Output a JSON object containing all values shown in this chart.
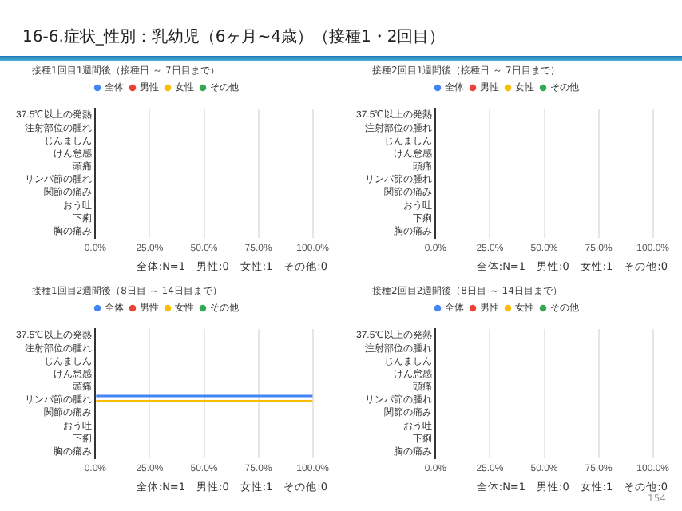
{
  "chart_data": [
    {
      "type": "bar",
      "orientation": "horizontal",
      "title": "接種1回目1週間後（接種日 ～ 7日目まで）",
      "annotations": [
        "16-6.症状_性別：乳幼児（6ヶ月~4歳）（接種1・2回目）",
        "全体:N=1　男性:0　女性:1　その他:0"
      ],
      "categories": [
        "37.5℃以上の発熱",
        "注射部位の腫れ",
        "じんましん",
        "けん怠感",
        "頭痛",
        "リンパ節の腫れ",
        "関節の痛み",
        "おう吐",
        "下痢",
        "胸の痛み"
      ],
      "series": [
        {
          "name": "全体",
          "color": "#4285f4",
          "values": [
            0,
            0,
            0,
            0,
            0,
            0,
            0,
            0,
            0,
            0
          ]
        },
        {
          "name": "男性",
          "color": "#ea4335",
          "values": [
            0,
            0,
            0,
            0,
            0,
            0,
            0,
            0,
            0,
            0
          ]
        },
        {
          "name": "女性",
          "color": "#fbbc04",
          "values": [
            0,
            0,
            0,
            0,
            0,
            0,
            0,
            0,
            0,
            0
          ]
        },
        {
          "name": "その他",
          "color": "#34a853",
          "values": [
            0,
            0,
            0,
            0,
            0,
            0,
            0,
            0,
            0,
            0
          ]
        }
      ],
      "xlim": [
        0,
        100
      ],
      "xticks": [
        {
          "value": 0,
          "label": "0.0%"
        },
        {
          "value": 25,
          "label": "25.0%"
        },
        {
          "value": 50,
          "label": "50.0%"
        },
        {
          "value": 75,
          "label": "75.0%"
        },
        {
          "value": 100,
          "label": "100.0%"
        }
      ],
      "grid": "x",
      "legend": "top"
    },
    {
      "type": "bar",
      "orientation": "horizontal",
      "title": "接種2回目1週間後（接種日 ～ 7日目まで）",
      "annotations": [
        "全体:N=1　男性:0　女性:1　その他:0"
      ],
      "categories": [
        "37.5℃以上の発熱",
        "注射部位の腫れ",
        "じんましん",
        "けん怠感",
        "頭痛",
        "リンパ節の腫れ",
        "関節の痛み",
        "おう吐",
        "下痢",
        "胸の痛み"
      ],
      "series": [
        {
          "name": "全体",
          "color": "#4285f4",
          "values": [
            0,
            0,
            0,
            0,
            0,
            0,
            0,
            0,
            0,
            0
          ]
        },
        {
          "name": "男性",
          "color": "#ea4335",
          "values": [
            0,
            0,
            0,
            0,
            0,
            0,
            0,
            0,
            0,
            0
          ]
        },
        {
          "name": "女性",
          "color": "#fbbc04",
          "values": [
            0,
            0,
            0,
            0,
            0,
            0,
            0,
            0,
            0,
            0
          ]
        },
        {
          "name": "その他",
          "color": "#34a853",
          "values": [
            0,
            0,
            0,
            0,
            0,
            0,
            0,
            0,
            0,
            0
          ]
        }
      ],
      "xlim": [
        0,
        100
      ],
      "xticks": [
        {
          "value": 0,
          "label": "0.0%"
        },
        {
          "value": 25,
          "label": "25.0%"
        },
        {
          "value": 50,
          "label": "50.0%"
        },
        {
          "value": 75,
          "label": "75.0%"
        },
        {
          "value": 100,
          "label": "100.0%"
        }
      ],
      "grid": "x",
      "legend": "top"
    },
    {
      "type": "bar",
      "orientation": "horizontal",
      "title": "接種1回目2週間後（8日目 ～ 14日目まで）",
      "annotations": [
        "全体:N=1　男性:0　女性:1　その他:0"
      ],
      "categories": [
        "37.5℃以上の発熱",
        "注射部位の腫れ",
        "じんましん",
        "けん怠感",
        "頭痛",
        "リンパ節の腫れ",
        "関節の痛み",
        "おう吐",
        "下痢",
        "胸の痛み"
      ],
      "series": [
        {
          "name": "全体",
          "color": "#4285f4",
          "values": [
            0,
            0,
            0,
            0,
            0,
            100,
            0,
            0,
            0,
            0
          ]
        },
        {
          "name": "男性",
          "color": "#ea4335",
          "values": [
            0,
            0,
            0,
            0,
            0,
            0,
            0,
            0,
            0,
            0
          ]
        },
        {
          "name": "女性",
          "color": "#fbbc04",
          "values": [
            0,
            0,
            0,
            0,
            0,
            100,
            0,
            0,
            0,
            0
          ]
        },
        {
          "name": "その他",
          "color": "#34a853",
          "values": [
            0,
            0,
            0,
            0,
            0,
            0,
            0,
            0,
            0,
            0
          ]
        }
      ],
      "xlim": [
        0,
        100
      ],
      "xticks": [
        {
          "value": 0,
          "label": "0.0%"
        },
        {
          "value": 25,
          "label": "25.0%"
        },
        {
          "value": 50,
          "label": "50.0%"
        },
        {
          "value": 75,
          "label": "75.0%"
        },
        {
          "value": 100,
          "label": "100.0%"
        }
      ],
      "grid": "x",
      "legend": "top"
    },
    {
      "type": "bar",
      "orientation": "horizontal",
      "title": "接種2回目2週間後（8日目 ～ 14日目まで）",
      "annotations": [
        "全体:N=1　男性:0　女性:1　その他:0",
        "154"
      ],
      "categories": [
        "37.5℃以上の発熱",
        "注射部位の腫れ",
        "じんましん",
        "けん怠感",
        "頭痛",
        "リンパ節の腫れ",
        "関節の痛み",
        "おう吐",
        "下痢",
        "胸の痛み"
      ],
      "series": [
        {
          "name": "全体",
          "color": "#4285f4",
          "values": [
            0,
            0,
            0,
            0,
            0,
            0,
            0,
            0,
            0,
            0
          ]
        },
        {
          "name": "男性",
          "color": "#ea4335",
          "values": [
            0,
            0,
            0,
            0,
            0,
            0,
            0,
            0,
            0,
            0
          ]
        },
        {
          "name": "女性",
          "color": "#fbbc04",
          "values": [
            0,
            0,
            0,
            0,
            0,
            0,
            0,
            0,
            0,
            0
          ]
        },
        {
          "name": "その他",
          "color": "#34a853",
          "values": [
            0,
            0,
            0,
            0,
            0,
            0,
            0,
            0,
            0,
            0
          ]
        }
      ],
      "xlim": [
        0,
        100
      ],
      "xticks": [
        {
          "value": 0,
          "label": "0.0%"
        },
        {
          "value": 25,
          "label": "25.0%"
        },
        {
          "value": 50,
          "label": "50.0%"
        },
        {
          "value": 75,
          "label": "75.0%"
        },
        {
          "value": 100,
          "label": "100.0%"
        }
      ],
      "grid": "x",
      "legend": "top"
    }
  ]
}
